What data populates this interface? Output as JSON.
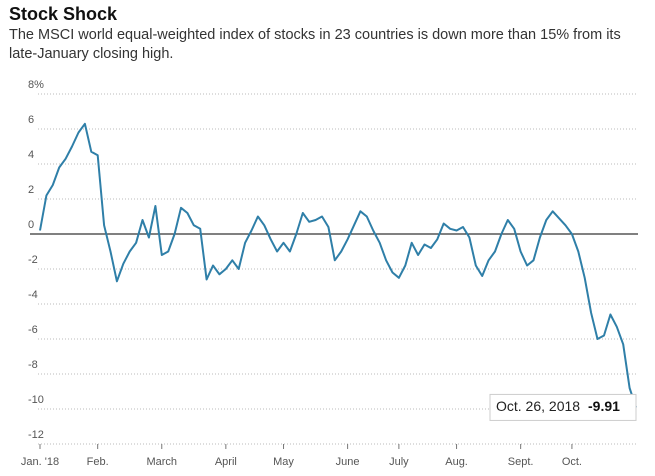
{
  "chart_data": {
    "type": "line",
    "title": "Stock Shock",
    "subtitle": "The MSCI world equal-weighted index of stocks in 23 countries is down more than 15% from its late-January closing high.",
    "categories": [
      "Jan. '18",
      null,
      null,
      null,
      null,
      null,
      null,
      null,
      null,
      "Feb.",
      null,
      null,
      null,
      null,
      null,
      null,
      null,
      null,
      null,
      "March",
      null,
      null,
      null,
      null,
      null,
      null,
      null,
      null,
      null,
      "April",
      null,
      null,
      null,
      null,
      null,
      null,
      null,
      null,
      "May",
      null,
      null,
      null,
      null,
      null,
      null,
      null,
      null,
      null,
      "June",
      null,
      null,
      null,
      null,
      null,
      null,
      null,
      "July",
      null,
      null,
      null,
      null,
      null,
      null,
      null,
      null,
      "Aug.",
      null,
      null,
      null,
      null,
      null,
      null,
      null,
      null,
      null,
      "Sept.",
      null,
      null,
      null,
      null,
      null,
      null,
      null,
      "Oct.",
      null,
      null,
      null,
      null,
      null,
      null,
      null,
      null,
      null,
      null
    ],
    "series": [
      {
        "name": "MSCI world equal-weighted index",
        "color": "#2f7fa8",
        "values": [
          0.2,
          2.2,
          2.8,
          3.8,
          4.3,
          5.0,
          5.8,
          6.3,
          4.7,
          4.5,
          0.5,
          -1.0,
          -2.7,
          -1.7,
          -1.0,
          -0.5,
          0.8,
          -0.2,
          1.6,
          -1.2,
          -1.0,
          0.0,
          1.5,
          1.2,
          0.5,
          0.3,
          -2.6,
          -1.8,
          -2.3,
          -2.0,
          -1.5,
          -2.0,
          -0.5,
          0.2,
          1.0,
          0.5,
          -0.3,
          -1.0,
          -0.5,
          -1.0,
          0.0,
          1.2,
          0.7,
          0.8,
          1.0,
          0.4,
          -1.5,
          -1.0,
          -0.3,
          0.5,
          1.3,
          1.0,
          0.2,
          -0.5,
          -1.5,
          -2.2,
          -2.5,
          -1.8,
          -0.5,
          -1.2,
          -0.6,
          -0.8,
          -0.3,
          0.6,
          0.3,
          0.2,
          0.4,
          -0.2,
          -1.8,
          -2.4,
          -1.5,
          -1.0,
          0.0,
          0.8,
          0.3,
          -1.0,
          -1.8,
          -1.5,
          -0.2,
          0.8,
          1.3,
          0.9,
          0.5,
          0.0,
          -1.0,
          -2.5,
          -4.5,
          -6.0,
          -5.8,
          -4.6,
          -5.3,
          -6.3,
          -8.8,
          -9.91
        ]
      }
    ],
    "ylim": [
      -12,
      8
    ],
    "yticks": [
      {
        "value": 8,
        "label": "8%"
      },
      6,
      4,
      2,
      0,
      -2,
      -4,
      -6,
      -8,
      -10,
      -12
    ],
    "grid": true,
    "annotation": {
      "text": "Oct. 26, 2018",
      "value": -9.91
    }
  }
}
